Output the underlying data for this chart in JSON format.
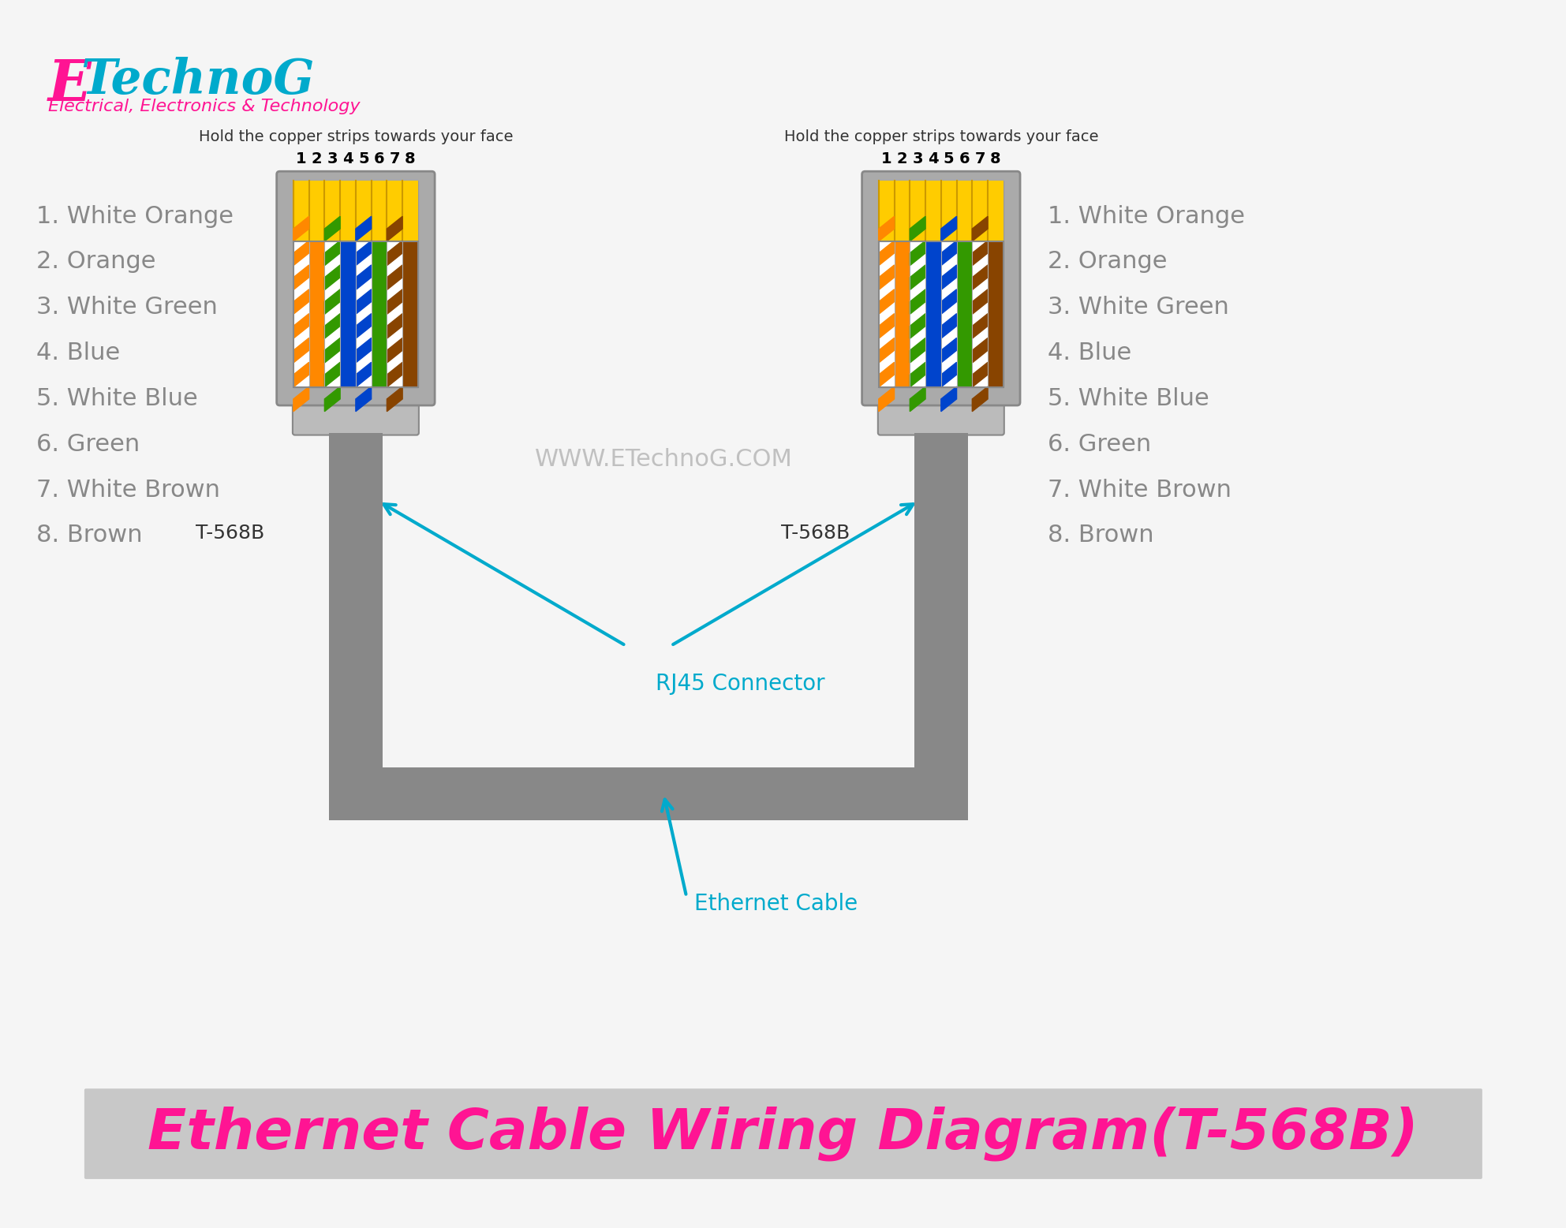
{
  "bg_color": "#f5f5f5",
  "title_text": "Ethernet Cable Wiring Diagram(T-568B)",
  "title_color": "#ff1493",
  "title_bg": "#c8c8c8",
  "logo_E_color": "#ff1493",
  "logo_text_color": "#00aacc",
  "logo_sub_color": "#ff1493",
  "watermark": "WWW.ETechnoG.COM",
  "watermark_color": "#aaaaaa",
  "pin_labels": [
    "1",
    "2",
    "3",
    "4",
    "5",
    "6",
    "7",
    "8"
  ],
  "wire_colors_t568b": [
    [
      "#ffffff",
      "#ff8800"
    ],
    [
      "#ff8800",
      "#ff8800"
    ],
    [
      "#ffffff",
      "#339900"
    ],
    [
      "#0044cc",
      "#0044cc"
    ],
    [
      "#ffffff",
      "#0044cc"
    ],
    [
      "#339900",
      "#339900"
    ],
    [
      "#ffffff",
      "#884400"
    ],
    [
      "#884400",
      "#884400"
    ]
  ],
  "pin_color_names": [
    "1. White Orange",
    "2. Orange",
    "3. White Green",
    "4. Blue",
    "5. White Blue",
    "6. Green",
    "7. White Brown",
    "8. Brown"
  ],
  "connector_label": "T-568B",
  "connector_body_color": "#aaaaaa",
  "connector_tab_color": "#bbbbbb",
  "cable_color": "#888888",
  "arrow_color": "#00aacc",
  "rj45_label": "RJ45 Connector",
  "ethernet_label": "Ethernet Cable",
  "hold_text": "Hold the copper strips towards your face",
  "pin_num_color": "#000000",
  "pin_name_color": "#888888",
  "yellow_top": "#ffcc00"
}
